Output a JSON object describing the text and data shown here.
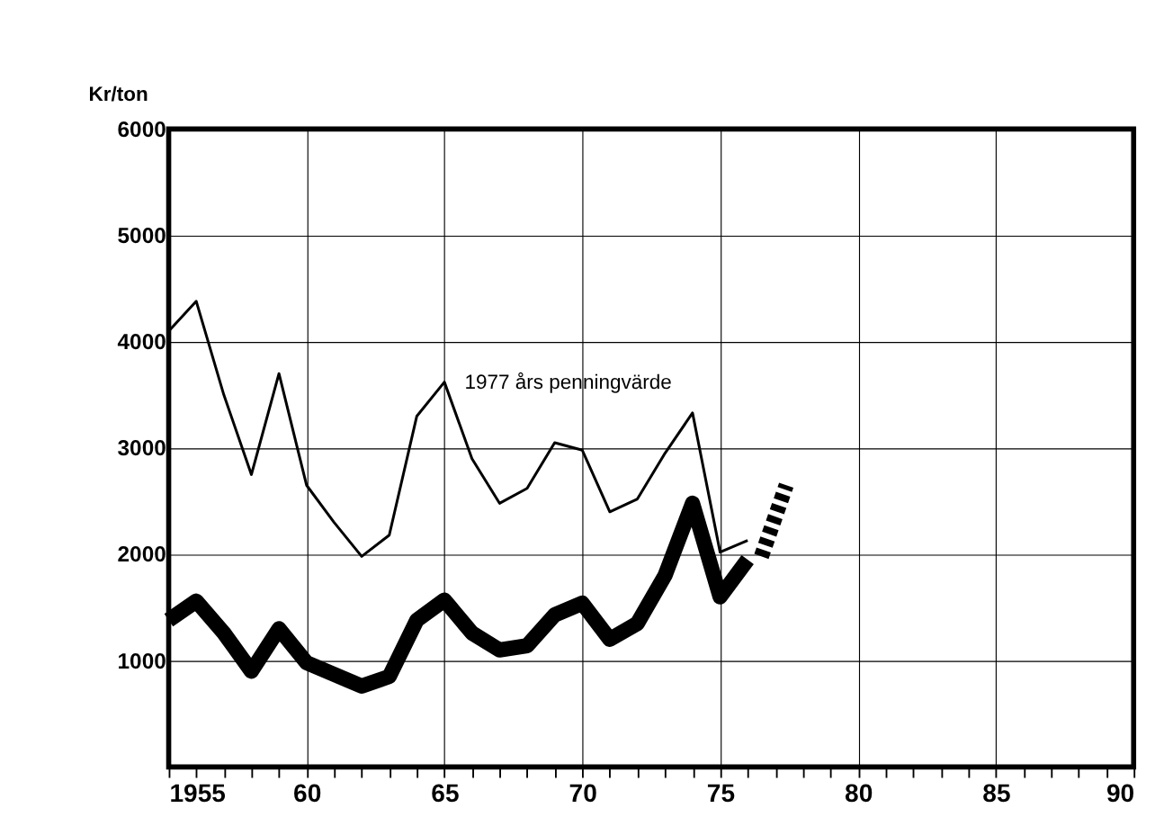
{
  "chart_data": {
    "type": "line",
    "ylabel": "Kr/ton",
    "x": [
      1955,
      1956,
      1957,
      1958,
      1959,
      1960,
      1961,
      1962,
      1963,
      1964,
      1965,
      1966,
      1967,
      1968,
      1969,
      1970,
      1971,
      1972,
      1973,
      1974,
      1975,
      1976
    ],
    "series": [
      {
        "name": "1977 års penningvärde",
        "color": "#000000",
        "values": [
          4100,
          4380,
          3500,
          2750,
          3700,
          2650,
          2300,
          1980,
          2180,
          3300,
          3620,
          2900,
          2480,
          2620,
          3050,
          2980,
          2400,
          2520,
          2950,
          3330,
          2020,
          2130
        ]
      },
      {
        "color": "#000000",
        "values": [
          1380,
          1560,
          1260,
          900,
          1300,
          980,
          870,
          760,
          850,
          1380,
          1570,
          1260,
          1100,
          1140,
          1430,
          1540,
          1200,
          1350,
          1800,
          2480,
          1600,
          1950
        ]
      },
      {
        "color": "#000000",
        "x": [
          1976.5,
          1977.4
        ],
        "values": [
          1980,
          2650
        ],
        "line_style": "dashed"
      }
    ],
    "xlim": [
      1955,
      1990
    ],
    "ylim": [
      0,
      6000
    ],
    "xticks": [
      {
        "value": 1955,
        "label": "1955"
      },
      {
        "value": 1956,
        "label": null
      },
      {
        "value": 1957,
        "label": null
      },
      {
        "value": 1958,
        "label": null
      },
      {
        "value": 1959,
        "label": null
      },
      {
        "value": 1960,
        "label": "60"
      },
      {
        "value": 1961,
        "label": null
      },
      {
        "value": 1962,
        "label": null
      },
      {
        "value": 1963,
        "label": null
      },
      {
        "value": 1964,
        "label": null
      },
      {
        "value": 1965,
        "label": "65"
      },
      {
        "value": 1966,
        "label": null
      },
      {
        "value": 1967,
        "label": null
      },
      {
        "value": 1968,
        "label": null
      },
      {
        "value": 1969,
        "label": null
      },
      {
        "value": 1970,
        "label": "70"
      },
      {
        "value": 1971,
        "label": null
      },
      {
        "value": 1972,
        "label": null
      },
      {
        "value": 1973,
        "label": null
      },
      {
        "value": 1974,
        "label": null
      },
      {
        "value": 1975,
        "label": "75"
      },
      {
        "value": 1976,
        "label": null
      },
      {
        "value": 1977,
        "label": null
      },
      {
        "value": 1978,
        "label": null
      },
      {
        "value": 1979,
        "label": null
      },
      {
        "value": 1980,
        "label": "80"
      },
      {
        "value": 1981,
        "label": null
      },
      {
        "value": 1982,
        "label": null
      },
      {
        "value": 1983,
        "label": null
      },
      {
        "value": 1984,
        "label": null
      },
      {
        "value": 1985,
        "label": "85"
      },
      {
        "value": 1986,
        "label": null
      },
      {
        "value": 1987,
        "label": null
      },
      {
        "value": 1988,
        "label": null
      },
      {
        "value": 1989,
        "label": null
      },
      {
        "value": 1990,
        "label": "90"
      }
    ],
    "yticks": [
      1000,
      2000,
      3000,
      4000,
      5000,
      6000
    ],
    "grid": true,
    "marker": "none",
    "line_style": "solid"
  }
}
